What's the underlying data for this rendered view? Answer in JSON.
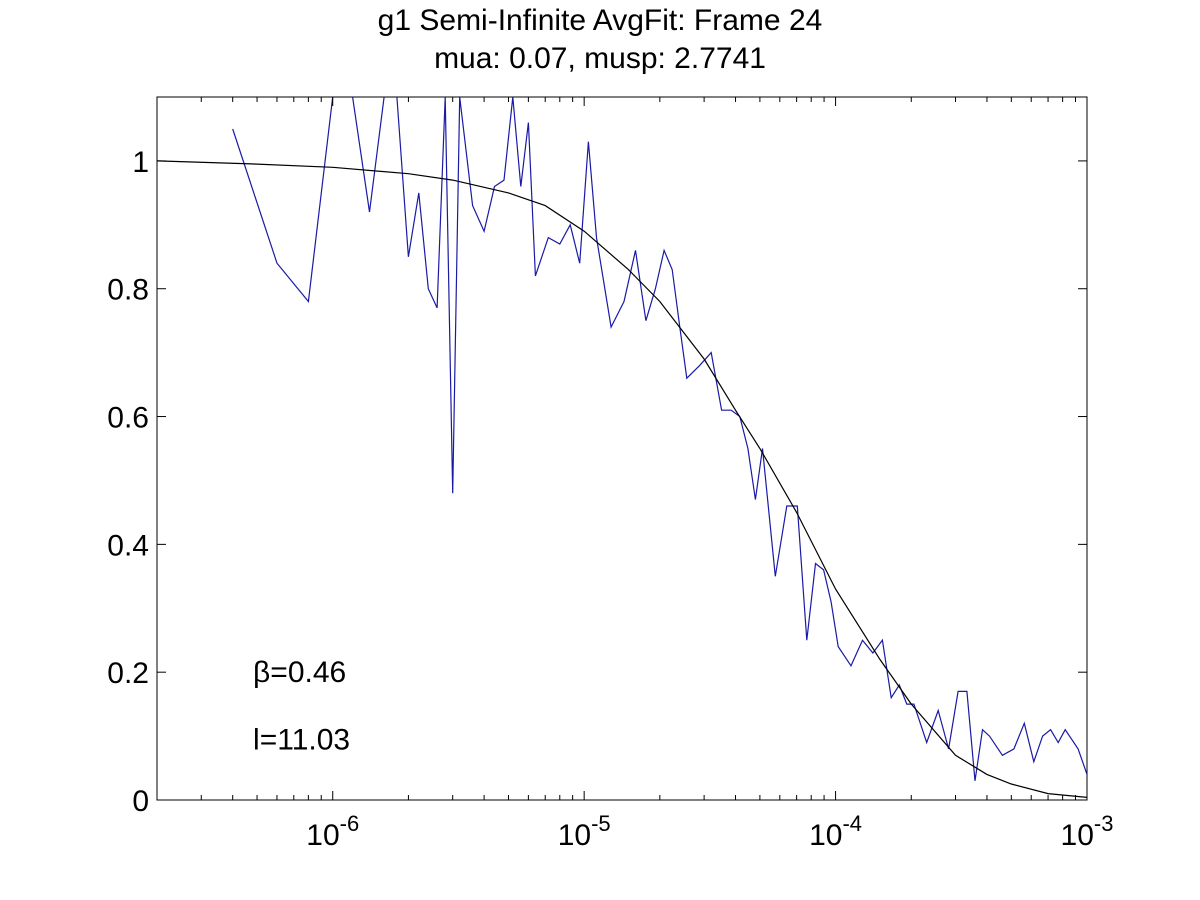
{
  "chart_data": {
    "type": "line",
    "title": "g1 Semi-Infinite AvgFit: Frame 24",
    "subtitle": "mua: 0.07, musp: 2.7741",
    "xscale": "log",
    "xlim": [
      2e-07,
      0.001
    ],
    "ylim": [
      0,
      1.1
    ],
    "grid": false,
    "xticks": [
      {
        "value": 1e-06,
        "base": "10",
        "exp": "-6"
      },
      {
        "value": 1e-05,
        "base": "10",
        "exp": "-5"
      },
      {
        "value": 0.0001,
        "base": "10",
        "exp": "-4"
      },
      {
        "value": 0.001,
        "base": "10",
        "exp": "-3"
      }
    ],
    "yticks": [
      {
        "value": 0,
        "label": "0"
      },
      {
        "value": 0.2,
        "label": "0.2"
      },
      {
        "value": 0.4,
        "label": "0.4"
      },
      {
        "value": 0.6,
        "label": "0.6"
      },
      {
        "value": 0.8,
        "label": "0.8"
      },
      {
        "value": 1,
        "label": "1"
      }
    ],
    "annotations": [
      {
        "text": "β=0.46",
        "x": 5e-07,
        "y": 0.2
      },
      {
        "text": "l=11.03",
        "x": 5e-07,
        "y": 0.095
      }
    ],
    "series": [
      {
        "color": "#1a1aa6",
        "x": [
          4e-07,
          6e-07,
          8e-07,
          1e-06,
          1.2e-06,
          1.4e-06,
          1.6e-06,
          1.8e-06,
          2e-06,
          2.2e-06,
          2.4e-06,
          2.6e-06,
          2.8e-06,
          3e-06,
          3.2e-06,
          3.6e-06,
          4e-06,
          4.4e-06,
          4.8e-06,
          5.2e-06,
          5.6e-06,
          6e-06,
          6.4e-06,
          7.2e-06,
          8e-06,
          8.8e-06,
          9.6e-06,
          1.04e-05,
          1.12e-05,
          1.28e-05,
          1.44e-05,
          1.6e-05,
          1.76e-05,
          1.92e-05,
          2.08e-05,
          2.24e-05,
          2.4e-05,
          2.56e-05,
          2.88e-05,
          3.2e-05,
          3.52e-05,
          3.84e-05,
          4.16e-05,
          4.48e-05,
          4.8e-05,
          5.12e-05,
          5.76e-05,
          6.4e-05,
          7.04e-05,
          7.68e-05,
          8.32e-05,
          8.96e-05,
          9.6e-05,
          0.0001024,
          0.0001152,
          0.000128,
          0.0001408,
          0.0001536,
          0.0001664,
          0.0001792,
          0.000192,
          0.0002048,
          0.0002304,
          0.000256,
          0.0002816,
          0.0003072,
          0.0003328,
          0.0003584,
          0.000384,
          0.0004096,
          0.0004608,
          0.000512,
          0.0005632,
          0.0006144,
          0.0006656,
          0.0007168,
          0.000768,
          0.0008192,
          0.0009216,
          0.001
        ],
        "y": [
          1.05,
          0.84,
          0.78,
          1.1,
          1.1,
          0.92,
          1.1,
          1.1,
          0.85,
          0.95,
          0.8,
          0.77,
          1.1,
          0.48,
          1.1,
          0.93,
          0.89,
          0.96,
          0.97,
          1.1,
          0.96,
          1.06,
          0.82,
          0.88,
          0.87,
          0.9,
          0.84,
          1.03,
          0.88,
          0.74,
          0.78,
          0.86,
          0.75,
          0.8,
          0.86,
          0.83,
          0.74,
          0.66,
          0.68,
          0.7,
          0.61,
          0.61,
          0.6,
          0.55,
          0.47,
          0.55,
          0.35,
          0.46,
          0.46,
          0.25,
          0.37,
          0.36,
          0.31,
          0.24,
          0.21,
          0.25,
          0.23,
          0.25,
          0.16,
          0.18,
          0.15,
          0.15,
          0.09,
          0.14,
          0.08,
          0.17,
          0.17,
          0.03,
          0.11,
          0.1,
          0.07,
          0.08,
          0.12,
          0.06,
          0.1,
          0.11,
          0.09,
          0.11,
          0.08,
          0.04
        ]
      },
      {
        "color": "#000000",
        "x": [
          2e-07,
          5e-07,
          1e-06,
          2e-06,
          3e-06,
          5e-06,
          7e-06,
          1e-05,
          1.5e-05,
          2e-05,
          3e-05,
          4e-05,
          5e-05,
          7e-05,
          0.0001,
          0.00015,
          0.0002,
          0.0003,
          0.0004,
          0.0005,
          0.0007,
          0.001
        ],
        "y": [
          1.0,
          0.995,
          0.99,
          0.98,
          0.97,
          0.95,
          0.93,
          0.89,
          0.83,
          0.78,
          0.69,
          0.61,
          0.55,
          0.45,
          0.33,
          0.22,
          0.15,
          0.07,
          0.04,
          0.025,
          0.01,
          0.004
        ]
      }
    ]
  }
}
